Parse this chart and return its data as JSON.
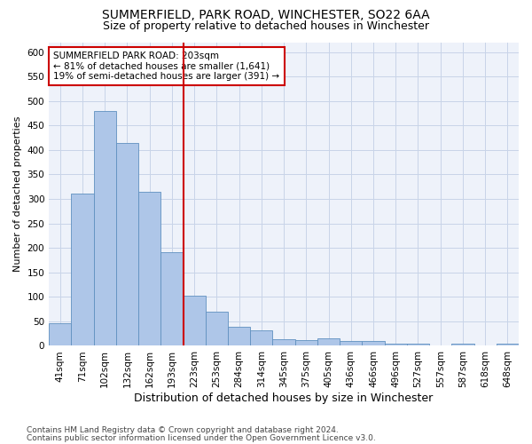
{
  "title1": "SUMMERFIELD, PARK ROAD, WINCHESTER, SO22 6AA",
  "title2": "Size of property relative to detached houses in Winchester",
  "xlabel": "Distribution of detached houses by size in Winchester",
  "ylabel": "Number of detached properties",
  "categories": [
    "41sqm",
    "71sqm",
    "102sqm",
    "132sqm",
    "162sqm",
    "193sqm",
    "223sqm",
    "253sqm",
    "284sqm",
    "314sqm",
    "345sqm",
    "375sqm",
    "405sqm",
    "436sqm",
    "466sqm",
    "496sqm",
    "527sqm",
    "557sqm",
    "587sqm",
    "618sqm",
    "648sqm"
  ],
  "values": [
    46,
    311,
    480,
    415,
    315,
    191,
    103,
    70,
    38,
    31,
    14,
    12,
    15,
    10,
    9,
    5,
    5,
    0,
    5,
    0,
    5
  ],
  "bar_color": "#aec6e8",
  "bar_edge_color": "#6090c0",
  "grid_color": "#c8d4e8",
  "vline_x_index": 5.5,
  "vline_color": "#cc0000",
  "annotation_line1": "SUMMERFIELD PARK ROAD: 203sqm",
  "annotation_line2": "← 81% of detached houses are smaller (1,641)",
  "annotation_line3": "19% of semi-detached houses are larger (391) →",
  "annotation_box_color": "#ffffff",
  "annotation_box_edgecolor": "#cc0000",
  "ylim": [
    0,
    620
  ],
  "yticks": [
    0,
    50,
    100,
    150,
    200,
    250,
    300,
    350,
    400,
    450,
    500,
    550,
    600
  ],
  "footer1": "Contains HM Land Registry data © Crown copyright and database right 2024.",
  "footer2": "Contains public sector information licensed under the Open Government Licence v3.0.",
  "title1_fontsize": 10,
  "title2_fontsize": 9,
  "xlabel_fontsize": 9,
  "ylabel_fontsize": 8,
  "tick_fontsize": 7.5,
  "annotation_fontsize": 7.5,
  "footer_fontsize": 6.5,
  "background_color": "#eef2fa"
}
